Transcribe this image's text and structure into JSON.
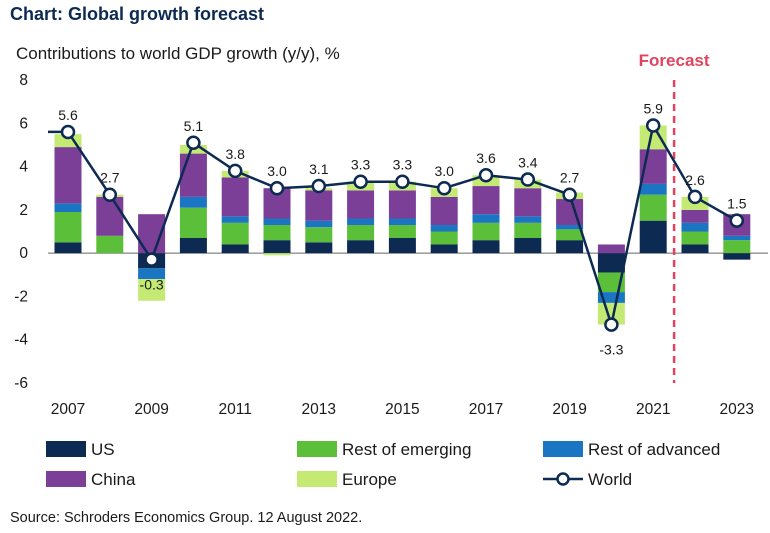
{
  "title": "Chart: Global growth forecast",
  "subtitle": "Contributions to world GDP growth (y/y), %",
  "source": "Source: Schroders Economics Group. 12 August 2022.",
  "forecast_label": "Forecast",
  "colors": {
    "US": "#0d2a52",
    "Rest of emerging": "#5cbf3a",
    "Rest of advanced": "#1a76c2",
    "China": "#7b3f98",
    "Europe": "#c4ea74",
    "World": "#0d2a52",
    "forecast_line": "#e0445e",
    "title": "#0d2a52"
  },
  "chart_data": {
    "type": "bar",
    "stacked": true,
    "categories": [
      "2007",
      "2008",
      "2009",
      "2010",
      "2011",
      "2012",
      "2013",
      "2014",
      "2015",
      "2016",
      "2017",
      "2018",
      "2019",
      "2020",
      "2021",
      "2022",
      "2023"
    ],
    "xtick_labels": [
      "2007",
      "2009",
      "2011",
      "2013",
      "2015",
      "2017",
      "2019",
      "2021",
      "2023"
    ],
    "ylim": [
      -6,
      8
    ],
    "yticks": [
      -6,
      -4,
      -2,
      0,
      2,
      4,
      6,
      8
    ],
    "forecast_start": "2022",
    "series": [
      {
        "name": "US",
        "values": [
          0.5,
          0.0,
          -0.7,
          0.7,
          0.4,
          0.6,
          0.5,
          0.6,
          0.7,
          0.4,
          0.6,
          0.7,
          0.6,
          -0.9,
          1.5,
          0.4,
          -0.3
        ]
      },
      {
        "name": "Rest of emerging",
        "values": [
          1.4,
          0.8,
          0.0,
          1.4,
          1.0,
          0.7,
          0.7,
          0.7,
          0.6,
          0.6,
          0.8,
          0.7,
          0.5,
          -0.9,
          1.2,
          0.6,
          0.6
        ]
      },
      {
        "name": "Rest of advanced",
        "values": [
          0.4,
          0.0,
          -0.5,
          0.5,
          0.3,
          0.3,
          0.3,
          0.3,
          0.3,
          0.3,
          0.4,
          0.3,
          0.2,
          -0.5,
          0.5,
          0.4,
          0.2
        ]
      },
      {
        "name": "China",
        "values": [
          2.6,
          1.8,
          1.8,
          2.0,
          1.8,
          1.4,
          1.4,
          1.3,
          1.3,
          1.3,
          1.3,
          1.3,
          1.2,
          0.4,
          1.6,
          0.6,
          1.0
        ]
      },
      {
        "name": "Europe",
        "values": [
          0.6,
          0.1,
          -1.0,
          0.4,
          0.3,
          -0.1,
          0.1,
          0.4,
          0.4,
          0.4,
          0.5,
          0.4,
          0.3,
          -1.0,
          1.1,
          0.6,
          0.0
        ]
      }
    ],
    "line": {
      "name": "World",
      "values": [
        5.6,
        2.7,
        -0.3,
        5.1,
        3.8,
        3.0,
        3.1,
        3.3,
        3.3,
        3.0,
        3.6,
        3.4,
        2.7,
        -3.3,
        5.9,
        2.6,
        1.5
      ]
    },
    "data_labels": [
      "5.6",
      "2.7",
      "-0.3",
      "5.1",
      "3.8",
      "3.0",
      "3.1",
      "3.3",
      "3.3",
      "3.0",
      "3.6",
      "3.4",
      "2.7",
      "-3.3",
      "5.9",
      "2.6",
      "1.5"
    ],
    "legend": [
      "US",
      "Rest of emerging",
      "Rest of advanced",
      "China",
      "Europe",
      "World"
    ],
    "legend_placement": "bottom"
  }
}
